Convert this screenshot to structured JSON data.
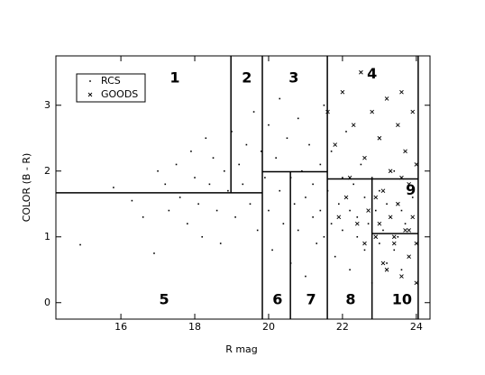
{
  "chart_data": {
    "type": "scatter",
    "x_label": "R mag",
    "y_label": "COLOR (B - R)",
    "xlim": [
      14.24,
      24.37
    ],
    "ylim": [
      -0.25,
      3.75
    ],
    "xticks": [
      16,
      18,
      20,
      22,
      24
    ],
    "yticks": [
      0,
      1,
      2,
      3
    ],
    "legend": "upper left",
    "series": [
      {
        "name": "RCS",
        "marker": "dot",
        "color": "#000000",
        "x": [
          14.9,
          15.8,
          16.3,
          16.6,
          16.9,
          17.0,
          17.2,
          17.3,
          17.5,
          17.6,
          17.8,
          17.9,
          18.0,
          18.1,
          18.2,
          18.3,
          18.4,
          18.5,
          18.6,
          18.7,
          18.8,
          18.9,
          19.0,
          19.1,
          19.2,
          19.3,
          19.4,
          19.5,
          19.6,
          19.7,
          19.8,
          19.9,
          20.0,
          20.0,
          20.1,
          20.2,
          20.3,
          20.3,
          20.4,
          20.5,
          20.6,
          20.6,
          20.7,
          20.8,
          20.8,
          20.9,
          21.0,
          21.0,
          21.1,
          21.2,
          21.2,
          21.3,
          21.4,
          21.4,
          21.5,
          21.5,
          21.6,
          21.7,
          21.7,
          21.8,
          21.9,
          22.0,
          22.0,
          22.1,
          22.2,
          22.2,
          22.3,
          22.4,
          22.4,
          22.5,
          22.6,
          22.6,
          22.7,
          22.8,
          22.8,
          22.9,
          23.0,
          23.0,
          23.1,
          23.2,
          23.2,
          23.3,
          23.4,
          23.4,
          23.5,
          23.6,
          23.6,
          23.7,
          23.8,
          23.9
        ],
        "values": [
          0.88,
          1.75,
          1.55,
          1.3,
          0.75,
          2.0,
          1.8,
          1.4,
          2.1,
          1.6,
          1.2,
          2.3,
          1.9,
          1.5,
          1.0,
          2.5,
          1.8,
          2.2,
          1.4,
          0.9,
          2.0,
          1.7,
          2.6,
          1.3,
          2.1,
          1.8,
          2.4,
          1.5,
          2.9,
          1.1,
          2.3,
          1.9,
          2.7,
          1.4,
          0.8,
          2.2,
          1.7,
          3.1,
          1.2,
          2.5,
          1.9,
          0.6,
          1.5,
          2.8,
          1.1,
          2.0,
          1.6,
          0.4,
          2.4,
          1.3,
          1.8,
          0.9,
          2.1,
          1.4,
          3.0,
          1.0,
          1.7,
          1.2,
          2.3,
          0.7,
          1.5,
          1.9,
          1.1,
          2.6,
          1.4,
          0.5,
          1.8,
          1.0,
          1.3,
          2.1,
          0.8,
          1.6,
          1.2,
          1.9,
          0.3,
          1.4,
          0.9,
          1.7,
          1.1,
          1.5,
          0.6,
          1.3,
          0.8,
          2.0,
          1.0,
          1.4,
          0.5,
          1.2,
          0.7,
          1.6
        ]
      },
      {
        "name": "GOODS",
        "marker": "x",
        "color": "#000000",
        "x": [
          21.6,
          21.8,
          22.0,
          22.1,
          22.3,
          22.4,
          22.5,
          22.6,
          22.7,
          22.8,
          22.9,
          23.0,
          23.1,
          23.1,
          23.2,
          23.3,
          23.3,
          23.4,
          23.5,
          23.5,
          23.6,
          23.6,
          23.7,
          23.7,
          23.8,
          23.8,
          23.9,
          23.9,
          24.0,
          24.0,
          23.4,
          23.0,
          22.9,
          22.6,
          23.2,
          23.6,
          24.0,
          23.8,
          22.2,
          21.9
        ],
        "values": [
          2.9,
          2.4,
          3.2,
          1.6,
          2.7,
          1.2,
          3.5,
          2.2,
          1.4,
          2.9,
          1.0,
          2.5,
          1.7,
          0.6,
          3.1,
          1.3,
          2.0,
          0.9,
          2.7,
          1.5,
          0.4,
          3.2,
          1.1,
          2.3,
          0.7,
          1.8,
          1.3,
          2.9,
          0.9,
          2.1,
          1.0,
          1.2,
          1.6,
          0.9,
          0.5,
          1.9,
          0.3,
          1.1,
          1.9,
          1.3
        ]
      }
    ],
    "boundaries": [
      [
        14.24,
        1.67,
        19.83,
        1.67
      ],
      [
        18.98,
        1.67,
        18.98,
        3.75
      ],
      [
        19.83,
        -0.25,
        19.83,
        3.75
      ],
      [
        19.83,
        1.99,
        21.59,
        1.99
      ],
      [
        20.59,
        -0.25,
        20.59,
        1.99
      ],
      [
        21.59,
        -0.25,
        21.59,
        3.75
      ],
      [
        21.59,
        1.88,
        24.05,
        1.88
      ],
      [
        22.8,
        -0.25,
        22.8,
        1.88
      ],
      [
        22.8,
        1.05,
        24.05,
        1.05
      ],
      [
        24.05,
        -0.25,
        24.05,
        3.75
      ]
    ],
    "region_labels": [
      {
        "label": "1",
        "x": 17.46,
        "y": 3.41
      },
      {
        "label": "2",
        "x": 19.41,
        "y": 3.41
      },
      {
        "label": "3",
        "x": 20.68,
        "y": 3.41
      },
      {
        "label": "4",
        "x": 22.8,
        "y": 3.47
      },
      {
        "label": "5",
        "x": 17.17,
        "y": 0.04
      },
      {
        "label": "6",
        "x": 20.24,
        "y": 0.04
      },
      {
        "label": "7",
        "x": 21.15,
        "y": 0.04
      },
      {
        "label": "8",
        "x": 22.22,
        "y": 0.04
      },
      {
        "label": "9",
        "x": 23.85,
        "y": 1.7
      },
      {
        "label": "10",
        "x": 23.61,
        "y": 0.04
      }
    ]
  }
}
